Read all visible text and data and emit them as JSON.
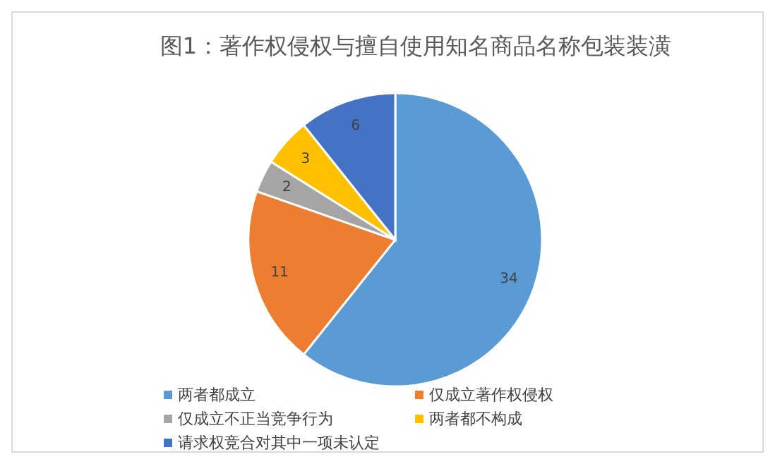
{
  "chart_data": {
    "type": "pie",
    "title": "图1：著作权侵权与擅自使用知名商品名称包装装潢",
    "categories": [
      "两者都成立",
      "仅成立著作权侵权",
      "仅成立不正当竞争行为",
      "两者都不构成",
      "请求权竞合对其中一项未认定"
    ],
    "values": [
      34,
      11,
      2,
      3,
      6
    ],
    "colors": [
      "#5b9bd5",
      "#ed7d31",
      "#a5a5a5",
      "#ffc000",
      "#4472c4"
    ],
    "data_labels": true,
    "legend": "bottom"
  }
}
